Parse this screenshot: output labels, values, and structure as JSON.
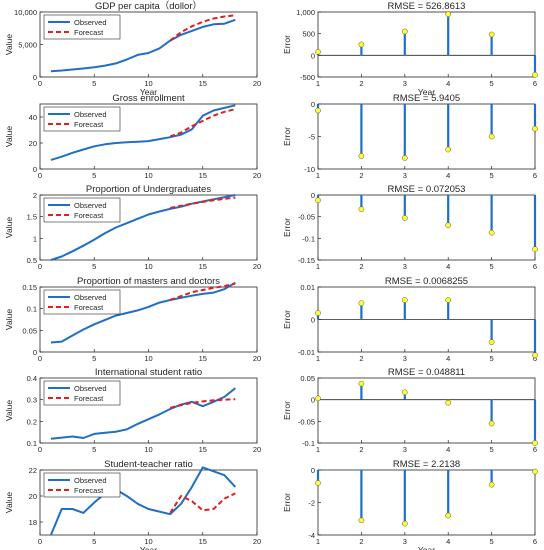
{
  "chart_data": [
    {
      "type": "line",
      "title": "GDP per capita（dollor）",
      "xlabel": "Year",
      "ylabel": "Value",
      "xlim": [
        0,
        20
      ],
      "ylim": [
        0,
        10000
      ],
      "xticks": [
        0,
        5,
        10,
        15,
        20
      ],
      "xtick_labels": [
        "0",
        "5",
        "10",
        "15",
        "20"
      ],
      "yticks": [
        0,
        5000,
        10000
      ],
      "ytick_labels": [
        "0",
        "5,000",
        "10,000"
      ],
      "legend": {
        "placement": "top-left",
        "entries": [
          "Observed",
          "Forecast"
        ]
      },
      "series": [
        {
          "name": "Observed",
          "color": "#1f6fc5",
          "style": "solid",
          "x": [
            1,
            2,
            3,
            4,
            5,
            6,
            7,
            8,
            9,
            10,
            11,
            12,
            13,
            14,
            15,
            16,
            17,
            18
          ],
          "y": [
            900,
            1000,
            1150,
            1300,
            1500,
            1750,
            2100,
            2700,
            3400,
            3700,
            4400,
            5600,
            6500,
            7100,
            7700,
            8100,
            8200,
            8800
          ]
        },
        {
          "name": "Forecast",
          "color": "#e02020",
          "style": "dashed",
          "x": [
            12,
            13,
            14,
            15,
            16,
            17,
            18
          ],
          "y": [
            5600,
            6900,
            7800,
            8500,
            9000,
            9300,
            9500
          ]
        }
      ]
    },
    {
      "type": "bar",
      "title": "RMSE = 526.8613",
      "xlabel": "Year",
      "ylabel": "Error",
      "xlim": [
        1,
        6
      ],
      "ylim": [
        -500,
        1000
      ],
      "xticks": [
        1,
        2,
        3,
        4,
        5,
        6
      ],
      "xtick_labels": [
        "1",
        "2",
        "3",
        "4",
        "5",
        "6"
      ],
      "yticks": [
        -500,
        0,
        500,
        1000
      ],
      "ytick_labels": [
        "-500",
        "0",
        "500",
        "1,000"
      ],
      "x": [
        1,
        2,
        3,
        4,
        5,
        6
      ],
      "values": [
        80,
        250,
        550,
        950,
        480,
        -450
      ]
    },
    {
      "type": "line",
      "title": "Gross enrollment",
      "xlabel": "",
      "ylabel": "Value",
      "xlim": [
        0,
        20
      ],
      "ylim": [
        0,
        50
      ],
      "xticks": [
        0,
        5,
        10,
        15,
        20
      ],
      "xtick_labels": [
        "0",
        "5",
        "10",
        "15",
        "20"
      ],
      "yticks": [
        0,
        20,
        40
      ],
      "ytick_labels": [
        "0",
        "20",
        "40"
      ],
      "legend": {
        "placement": "top-left",
        "entries": [
          "Observed",
          "Forecast"
        ]
      },
      "series": [
        {
          "name": "Observed",
          "color": "#1f6fc5",
          "style": "solid",
          "x": [
            1,
            2,
            3,
            4,
            5,
            6,
            7,
            8,
            9,
            10,
            11,
            12,
            13,
            14,
            15,
            16,
            17,
            18
          ],
          "y": [
            7,
            9.5,
            12.5,
            15,
            17.5,
            19,
            20,
            20.5,
            21,
            21.5,
            23,
            24.5,
            26.5,
            30.5,
            41,
            45,
            47,
            49
          ]
        },
        {
          "name": "Forecast",
          "color": "#e02020",
          "style": "dashed",
          "x": [
            12,
            13,
            14,
            15,
            16,
            17,
            18
          ],
          "y": [
            25,
            28,
            33,
            37,
            41,
            44,
            46
          ]
        }
      ]
    },
    {
      "type": "bar",
      "title": "RMSE = 5.9405",
      "xlabel": "",
      "ylabel": "Error",
      "xlim": [
        1,
        6
      ],
      "ylim": [
        -10,
        0
      ],
      "xticks": [
        1,
        2,
        3,
        4,
        5,
        6
      ],
      "xtick_labels": [
        "1",
        "2",
        "3",
        "4",
        "5",
        "6"
      ],
      "yticks": [
        -10,
        -5,
        0
      ],
      "ytick_labels": [
        "-10",
        "-5",
        "0"
      ],
      "x": [
        1,
        2,
        3,
        4,
        5,
        6
      ],
      "values": [
        -1,
        -8,
        -8.3,
        -7,
        -5,
        -3.8
      ]
    },
    {
      "type": "line",
      "title": "Proportion of Undergraduates",
      "xlabel": "",
      "ylabel": "Value",
      "xlim": [
        0,
        20
      ],
      "ylim": [
        0.5,
        2
      ],
      "xticks": [
        0,
        5,
        10,
        15,
        20
      ],
      "xtick_labels": [
        "0",
        "5",
        "10",
        "15",
        "20"
      ],
      "yticks": [
        0.5,
        1,
        1.5,
        2
      ],
      "ytick_labels": [
        "0.5",
        "1",
        "1.5",
        "2"
      ],
      "legend": {
        "placement": "top-left",
        "entries": [
          "Observed",
          "Forecast"
        ]
      },
      "series": [
        {
          "name": "Observed",
          "color": "#1f6fc5",
          "style": "solid",
          "x": [
            1,
            2,
            3,
            4,
            5,
            6,
            7,
            8,
            9,
            10,
            11,
            12,
            13,
            14,
            15,
            16,
            17,
            18
          ],
          "y": [
            0.5,
            0.58,
            0.7,
            0.83,
            0.97,
            1.12,
            1.25,
            1.35,
            1.45,
            1.55,
            1.62,
            1.68,
            1.73,
            1.8,
            1.85,
            1.9,
            1.95,
            2.0
          ]
        },
        {
          "name": "Forecast",
          "color": "#e02020",
          "style": "dashed",
          "x": [
            12,
            13,
            14,
            15,
            16,
            17,
            18
          ],
          "y": [
            1.7,
            1.75,
            1.8,
            1.84,
            1.88,
            1.91,
            1.94
          ]
        }
      ]
    },
    {
      "type": "bar",
      "title": "RMSE = 0.072053",
      "xlabel": "",
      "ylabel": "Error",
      "xlim": [
        1,
        6
      ],
      "ylim": [
        -0.15,
        0
      ],
      "xticks": [
        1,
        2,
        3,
        4,
        5,
        6
      ],
      "xtick_labels": [
        "1",
        "2",
        "3",
        "4",
        "5",
        "6"
      ],
      "yticks": [
        -0.15,
        -0.1,
        -0.05,
        0
      ],
      "ytick_labels": [
        "-0.15",
        "-0.1",
        "-0.05",
        "0"
      ],
      "x": [
        1,
        2,
        3,
        4,
        5,
        6
      ],
      "values": [
        -0.012,
        -0.033,
        -0.053,
        -0.07,
        -0.087,
        -0.125
      ]
    },
    {
      "type": "line",
      "title": "Proportion of masters and doctors",
      "xlabel": "",
      "ylabel": "Value",
      "xlim": [
        0,
        20
      ],
      "ylim": [
        0,
        0.15
      ],
      "xticks": [
        0,
        5,
        10,
        15,
        20
      ],
      "xtick_labels": [
        "0",
        "5",
        "10",
        "15",
        "20"
      ],
      "yticks": [
        0,
        0.05,
        0.1,
        0.15
      ],
      "ytick_labels": [
        "0",
        "0.05",
        "0.1",
        "0.15"
      ],
      "legend": {
        "placement": "top-left",
        "entries": [
          "Observed",
          "Forecast"
        ]
      },
      "series": [
        {
          "name": "Observed",
          "color": "#1f6fc5",
          "style": "solid",
          "x": [
            1,
            2,
            3,
            4,
            5,
            6,
            7,
            8,
            9,
            10,
            11,
            12,
            13,
            14,
            15,
            16,
            17,
            18
          ],
          "y": [
            0.022,
            0.024,
            0.038,
            0.052,
            0.064,
            0.074,
            0.084,
            0.09,
            0.096,
            0.104,
            0.114,
            0.12,
            0.125,
            0.13,
            0.134,
            0.137,
            0.145,
            0.16
          ]
        },
        {
          "name": "Forecast",
          "color": "#e02020",
          "style": "dashed",
          "x": [
            12,
            13,
            14,
            15,
            16,
            17,
            18
          ],
          "y": [
            0.12,
            0.129,
            0.138,
            0.143,
            0.148,
            0.152,
            0.158
          ]
        }
      ]
    },
    {
      "type": "bar",
      "title": "RMSE = 0.0068255",
      "xlabel": "",
      "ylabel": "Error",
      "xlim": [
        1,
        6
      ],
      "ylim": [
        -0.01,
        0.01
      ],
      "xticks": [
        1,
        2,
        3,
        4,
        5,
        6
      ],
      "xtick_labels": [
        "1",
        "2",
        "3",
        "4",
        "5",
        "6"
      ],
      "yticks": [
        -0.01,
        0,
        0.01
      ],
      "ytick_labels": [
        "-0.01",
        "0",
        "0.01"
      ],
      "x": [
        1,
        2,
        3,
        4,
        5,
        6
      ],
      "values": [
        0.002,
        0.005,
        0.006,
        0.006,
        -0.007,
        -0.011
      ]
    },
    {
      "type": "line",
      "title": "International student ratio",
      "xlabel": "",
      "ylabel": "Value",
      "xlim": [
        0,
        20
      ],
      "ylim": [
        0.1,
        0.4
      ],
      "xticks": [
        0,
        5,
        10,
        15,
        20
      ],
      "xtick_labels": [
        "0",
        "5",
        "10",
        "15",
        "20"
      ],
      "yticks": [
        0.1,
        0.2,
        0.3,
        0.4
      ],
      "ytick_labels": [
        "0.1",
        "0.2",
        "0.3",
        "0.4"
      ],
      "legend": {
        "placement": "top-left",
        "entries": [
          "Observed",
          "Forecast"
        ]
      },
      "series": [
        {
          "name": "Observed",
          "color": "#1f6fc5",
          "style": "solid",
          "x": [
            1,
            2,
            3,
            4,
            5,
            6,
            7,
            8,
            9,
            10,
            11,
            12,
            13,
            14,
            15,
            16,
            17,
            18
          ],
          "y": [
            0.12,
            0.125,
            0.13,
            0.123,
            0.142,
            0.147,
            0.152,
            0.163,
            0.188,
            0.21,
            0.232,
            0.257,
            0.277,
            0.29,
            0.27,
            0.29,
            0.313,
            0.353
          ]
        },
        {
          "name": "Forecast",
          "color": "#e02020",
          "style": "dashed",
          "x": [
            12,
            13,
            14,
            15,
            16,
            17,
            18
          ],
          "y": [
            0.262,
            0.275,
            0.285,
            0.292,
            0.297,
            0.3,
            0.302
          ]
        }
      ]
    },
    {
      "type": "bar",
      "title": "RMSE = 0.048811",
      "xlabel": "",
      "ylabel": "Error",
      "xlim": [
        1,
        6
      ],
      "ylim": [
        -0.1,
        0.05
      ],
      "xticks": [
        1,
        2,
        3,
        4,
        5,
        6
      ],
      "xtick_labels": [
        "1",
        "2",
        "3",
        "4",
        "5",
        "6"
      ],
      "yticks": [
        -0.1,
        -0.05,
        0,
        0.05
      ],
      "ytick_labels": [
        "-0.1",
        "-0.05",
        "0",
        "0.05"
      ],
      "x": [
        1,
        2,
        3,
        4,
        5,
        6
      ],
      "values": [
        0.003,
        0.037,
        0.017,
        -0.007,
        -0.055,
        -0.1
      ]
    },
    {
      "type": "line",
      "title": "Student-teacher ratio",
      "xlabel": "Year",
      "ylabel": "Value",
      "xlim": [
        0,
        20
      ],
      "ylim": [
        17,
        22
      ],
      "xticks": [
        0,
        5,
        10,
        15,
        20
      ],
      "xtick_labels": [
        "0",
        "5",
        "10",
        "15",
        "20"
      ],
      "yticks": [
        18,
        20,
        22
      ],
      "ytick_labels": [
        "18",
        "20",
        "22"
      ],
      "legend": {
        "placement": "top-left",
        "entries": [
          "Observed",
          "Forecast"
        ]
      },
      "series": [
        {
          "name": "Observed",
          "color": "#1f6fc5",
          "style": "solid",
          "x": [
            1,
            2,
            3,
            4,
            5,
            6,
            7,
            8,
            9,
            10,
            11,
            12,
            13,
            14,
            15,
            16,
            17,
            18
          ],
          "y": [
            17,
            19,
            19,
            18.7,
            19.5,
            20.2,
            20.5,
            20,
            19.4,
            19,
            18.8,
            18.6,
            19.4,
            20.7,
            22.2,
            21.9,
            21.6,
            20.7
          ]
        },
        {
          "name": "Forecast",
          "color": "#e02020",
          "style": "dashed",
          "x": [
            12,
            13,
            14,
            15,
            16,
            17,
            18
          ],
          "y": [
            18.7,
            20,
            19.6,
            18.9,
            19.0,
            19.8,
            20.2
          ]
        }
      ]
    },
    {
      "type": "bar",
      "title": "RMSE = 2.2138",
      "xlabel": "Year",
      "ylabel": "Error",
      "xlim": [
        1,
        6
      ],
      "ylim": [
        -4,
        0
      ],
      "xticks": [
        1,
        2,
        3,
        4,
        5,
        6
      ],
      "xtick_labels": [
        "1",
        "2",
        "3",
        "4",
        "5",
        "6"
      ],
      "yticks": [
        -4,
        -2,
        0
      ],
      "ytick_labels": [
        "-4",
        "-2",
        "0"
      ],
      "x": [
        1,
        2,
        3,
        4,
        5,
        6
      ],
      "values": [
        -0.8,
        -3.1,
        -3.3,
        -2.8,
        -0.9,
        -0.1
      ]
    }
  ]
}
